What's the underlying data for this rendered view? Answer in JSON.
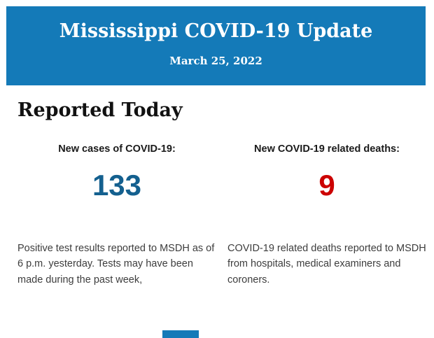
{
  "header": {
    "title": "Mississippi COVID-19 Update",
    "date": "March 25, 2022"
  },
  "section": {
    "heading": "Reported Today"
  },
  "stats": [
    {
      "label": "New cases of COVID-19:",
      "value": "133",
      "value_color": "#14608F",
      "description": "Positive test results reported to MSDH as of 6 p.m. yesterday. Tests may have been made during the past week,"
    },
    {
      "label": "New COVID-19 related deaths:",
      "value": "9",
      "value_color": "#CC0000",
      "description": "COVID-19 related deaths reported to MSDH from hospitals, medical examiners and coroners."
    }
  ],
  "colors": {
    "header_background": "#147AB8",
    "header_text": "#FFFFFF",
    "cases_value": "#14608F",
    "deaths_value": "#CC0000",
    "body_text": "#3D3D3D",
    "page_background": "#FFFFFF"
  }
}
